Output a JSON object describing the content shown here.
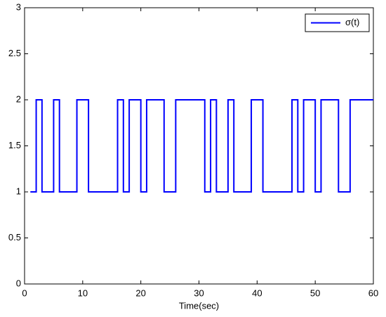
{
  "chart_data": {
    "type": "step",
    "xlabel": "Time(sec)",
    "x": [
      1,
      2,
      3,
      5,
      6,
      9,
      11,
      16,
      17,
      18,
      20,
      21,
      24,
      26,
      31,
      32,
      33,
      35,
      36,
      39,
      41,
      46,
      47,
      48,
      50,
      51,
      54,
      56,
      60
    ],
    "series": [
      {
        "name": "σ(t)",
        "color": "#0000ff",
        "values": [
          1,
          2,
          1,
          2,
          1,
          2,
          1,
          2,
          1,
          2,
          1,
          2,
          1,
          2,
          1,
          2,
          1,
          2,
          1,
          2,
          1,
          2,
          1,
          2,
          1,
          2,
          1,
          2,
          2
        ]
      }
    ],
    "xlim": [
      0,
      60
    ],
    "xticks": [
      0,
      10,
      20,
      30,
      40,
      50,
      60
    ],
    "ylim": [
      0,
      3
    ],
    "yticks": [
      0,
      0.5,
      1,
      1.5,
      2,
      2.5,
      3
    ],
    "grid": false,
    "legend": "upper-right"
  }
}
